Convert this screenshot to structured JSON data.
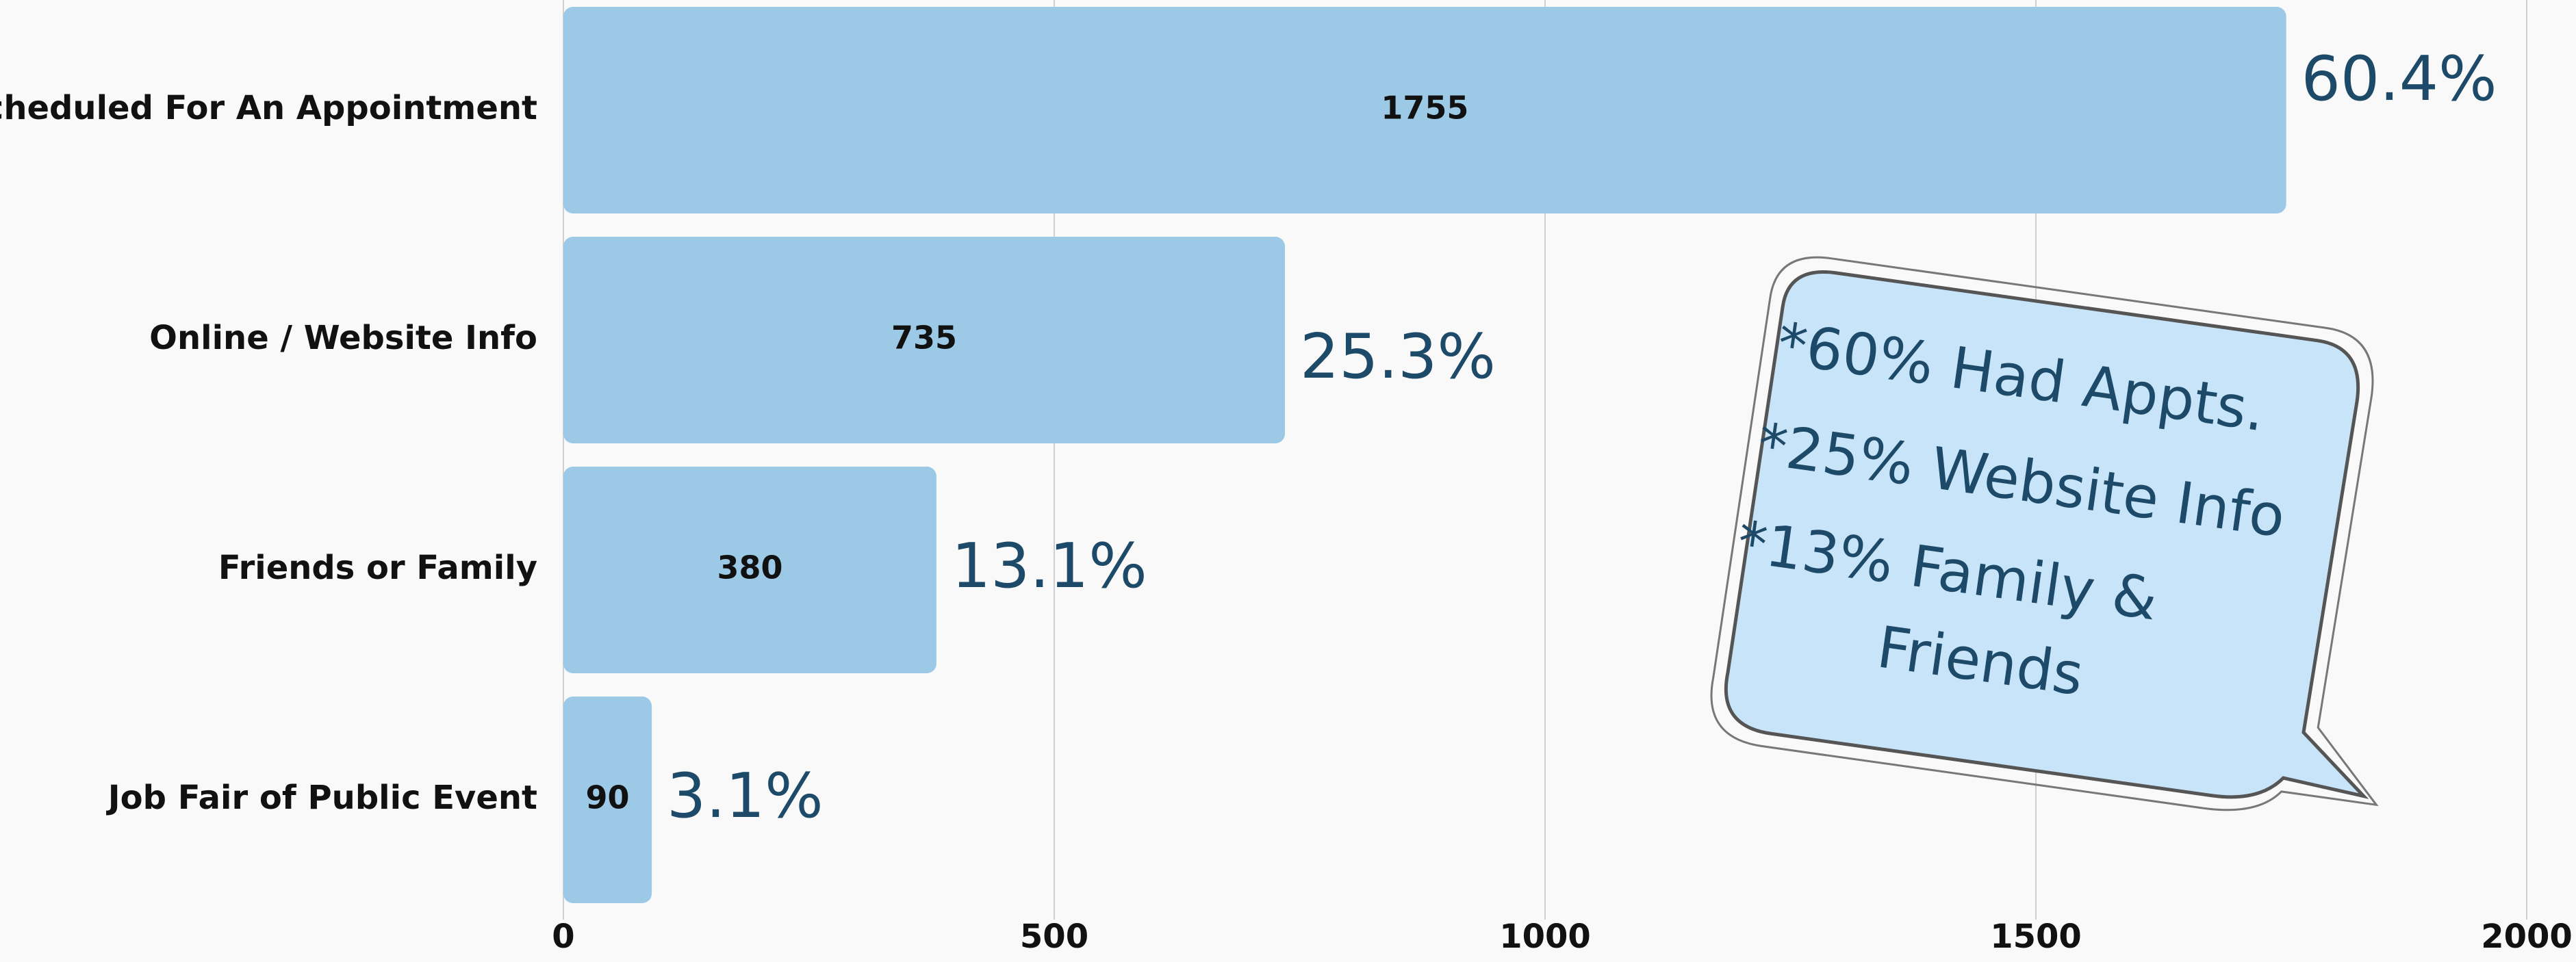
{
  "chart_data": {
    "type": "bar",
    "orientation": "horizontal",
    "categories": [
      "Scheduled For An Appointment",
      "Online / Website Info",
      "Friends or Family",
      "Job Fair of Public Event"
    ],
    "values": [
      1755,
      735,
      380,
      90
    ],
    "share_labels": [
      "60.4%",
      "25.3%",
      "13.1%",
      "3.1%"
    ],
    "color": "#9bc9e6",
    "xlim": [
      0,
      2000
    ],
    "xticks": [
      0,
      500,
      1000,
      1500,
      2000
    ],
    "grid": true,
    "note_lines": [
      "*60% Had Appts.",
      "*25% Website Info",
      "*13% Family &",
      "Friends"
    ]
  }
}
